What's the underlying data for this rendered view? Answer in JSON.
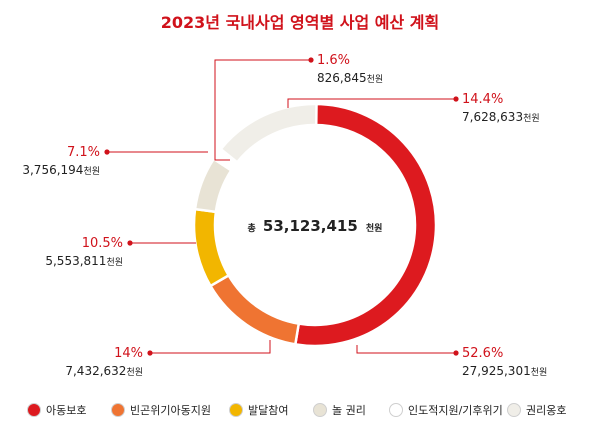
{
  "chart_data": {
    "type": "donut",
    "title": "2023년 국내사업 영역별 사업 예산 계획",
    "total": {
      "prefix": "총",
      "value": "53,123,415",
      "unit": "천원"
    },
    "unit": "천원",
    "accent_color": "#d0121b",
    "slices": [
      {
        "name": "아동보호",
        "percent": 52.6,
        "pct_label": "52.6%",
        "amount": "27,925,301",
        "color": "#dd1a1f"
      },
      {
        "name": "빈곤위기아동지원",
        "percent": 14.0,
        "pct_label": "14%",
        "amount": "7,432,632",
        "color": "#ef7432"
      },
      {
        "name": "발달참여",
        "percent": 10.5,
        "pct_label": "10.5%",
        "amount": "5,553,811",
        "color": "#f2b600"
      },
      {
        "name": "놀 권리",
        "percent": 7.1,
        "pct_label": "7.1%",
        "amount": "3,756,194",
        "color": "#e8e3d5"
      },
      {
        "name": "인도적지원/기후위기",
        "percent": 1.6,
        "pct_label": "1.6%",
        "amount": "826,845",
        "color": "#ffffff"
      },
      {
        "name": "권리옹호",
        "percent": 14.4,
        "pct_label": "14.4%",
        "amount": "7,628,633",
        "color": "#f0eee8"
      }
    ]
  }
}
